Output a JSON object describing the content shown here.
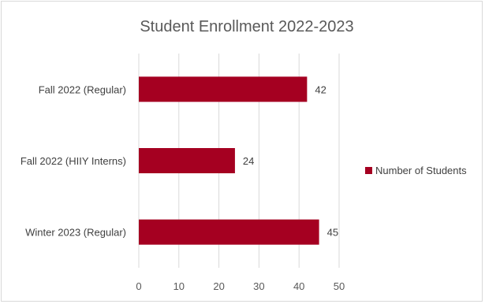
{
  "chart_data": {
    "type": "bar",
    "orientation": "horizontal",
    "title": "Student Enrollment 2022-2023",
    "categories": [
      "Fall 2022 (Regular)",
      "Fall 2022 (HIIY Interns)",
      "Winter 2023 (Regular)"
    ],
    "series": [
      {
        "name": "Number of Students",
        "values": [
          42,
          24,
          45
        ],
        "color": "#a50021"
      }
    ],
    "xlim": [
      0,
      50
    ],
    "ticks": [
      0,
      10,
      20,
      30,
      40,
      50
    ],
    "grid": true,
    "legend_position": "right",
    "data_labels": true
  }
}
